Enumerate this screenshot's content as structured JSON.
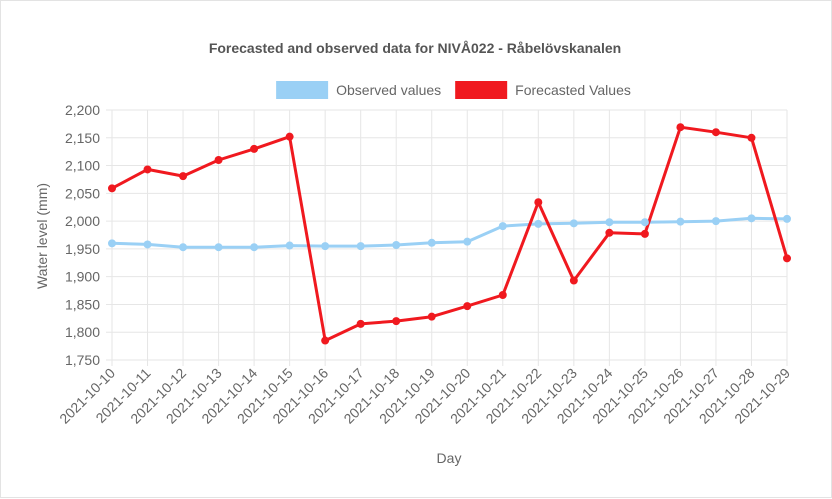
{
  "chart_data": {
    "type": "line",
    "title": "Forecasted and observed data for NIVÅ022 - Råbelövskanalen",
    "xlabel": "Day",
    "ylabel": "Water level (mm)",
    "ylim": [
      1750,
      2200
    ],
    "y_step": 50,
    "grid": true,
    "legend_position": "top",
    "categories": [
      "2021-10-10",
      "2021-10-11",
      "2021-10-12",
      "2021-10-13",
      "2021-10-14",
      "2021-10-15",
      "2021-10-16",
      "2021-10-17",
      "2021-10-18",
      "2021-10-19",
      "2021-10-20",
      "2021-10-21",
      "2021-10-22",
      "2021-10-23",
      "2021-10-24",
      "2021-10-25",
      "2021-10-26",
      "2021-10-27",
      "2021-10-28",
      "2021-10-29"
    ],
    "y_ticks": [
      "1,750",
      "1,800",
      "1,850",
      "1,900",
      "1,950",
      "2,000",
      "2,050",
      "2,100",
      "2,150",
      "2,200"
    ],
    "series": [
      {
        "name": "Observed values",
        "color": "#9ad0f5",
        "values": [
          1960,
          1958,
          1953,
          1953,
          1953,
          1956,
          1955,
          1955,
          1957,
          1961,
          1963,
          1991,
          1995,
          1996,
          1998,
          1998,
          1999,
          2000,
          2005,
          2004
        ]
      },
      {
        "name": "Forecasted Values",
        "color": "#f0191f",
        "values": [
          2059,
          2093,
          2081,
          2110,
          2130,
          2152,
          1785,
          1815,
          1820,
          1828,
          1847,
          1867,
          2034,
          1893,
          1979,
          1977,
          2169,
          2160,
          2150,
          1933
        ]
      }
    ]
  }
}
